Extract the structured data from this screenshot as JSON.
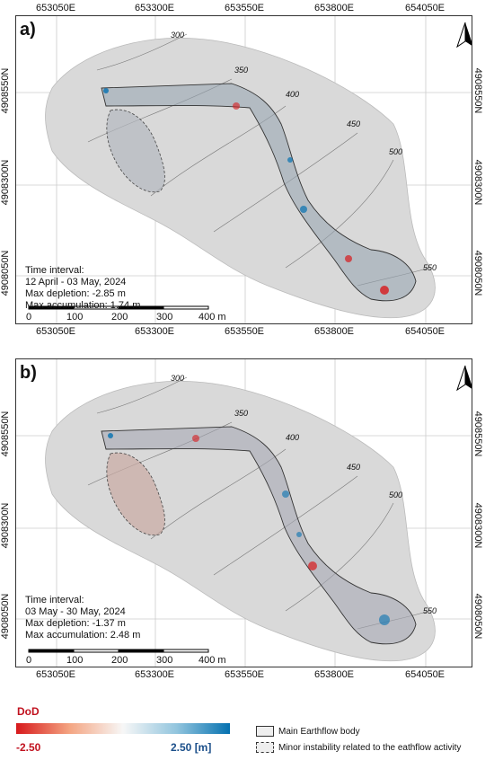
{
  "panels": [
    {
      "label": "a)",
      "interval_title": "Time interval:",
      "interval": "12 April - 03 May, 2024",
      "max_depletion": "Max depletion: -2.85 m",
      "max_accumulation": "Max accumulation: 1.74 m"
    },
    {
      "label": "b)",
      "interval_title": "Time interval:",
      "interval": "03 May - 30 May, 2024",
      "max_depletion": "Max depletion: -1.37 m",
      "max_accumulation": "Max accumulation: 2.48 m"
    }
  ],
  "easting_ticks": [
    "653050E",
    "653300E",
    "653550E",
    "653800E",
    "654050E"
  ],
  "northing_ticks": [
    "4908550N",
    "4908300N",
    "4908050N"
  ],
  "scale_bar": [
    "0",
    "100",
    "200",
    "300",
    "400 m"
  ],
  "contours": [
    "300",
    "350",
    "400",
    "450",
    "500",
    "550"
  ],
  "legend": {
    "title": "DoD",
    "min": "-2.50",
    "max": "2.50 [m]",
    "main_body": "Main Earthflow body",
    "minor": "Minor instability related to the eathflow activity"
  },
  "colors": {
    "depletion": "#d7191c",
    "accumulation": "#0571b0",
    "hillshade": "#d9d9d9"
  }
}
